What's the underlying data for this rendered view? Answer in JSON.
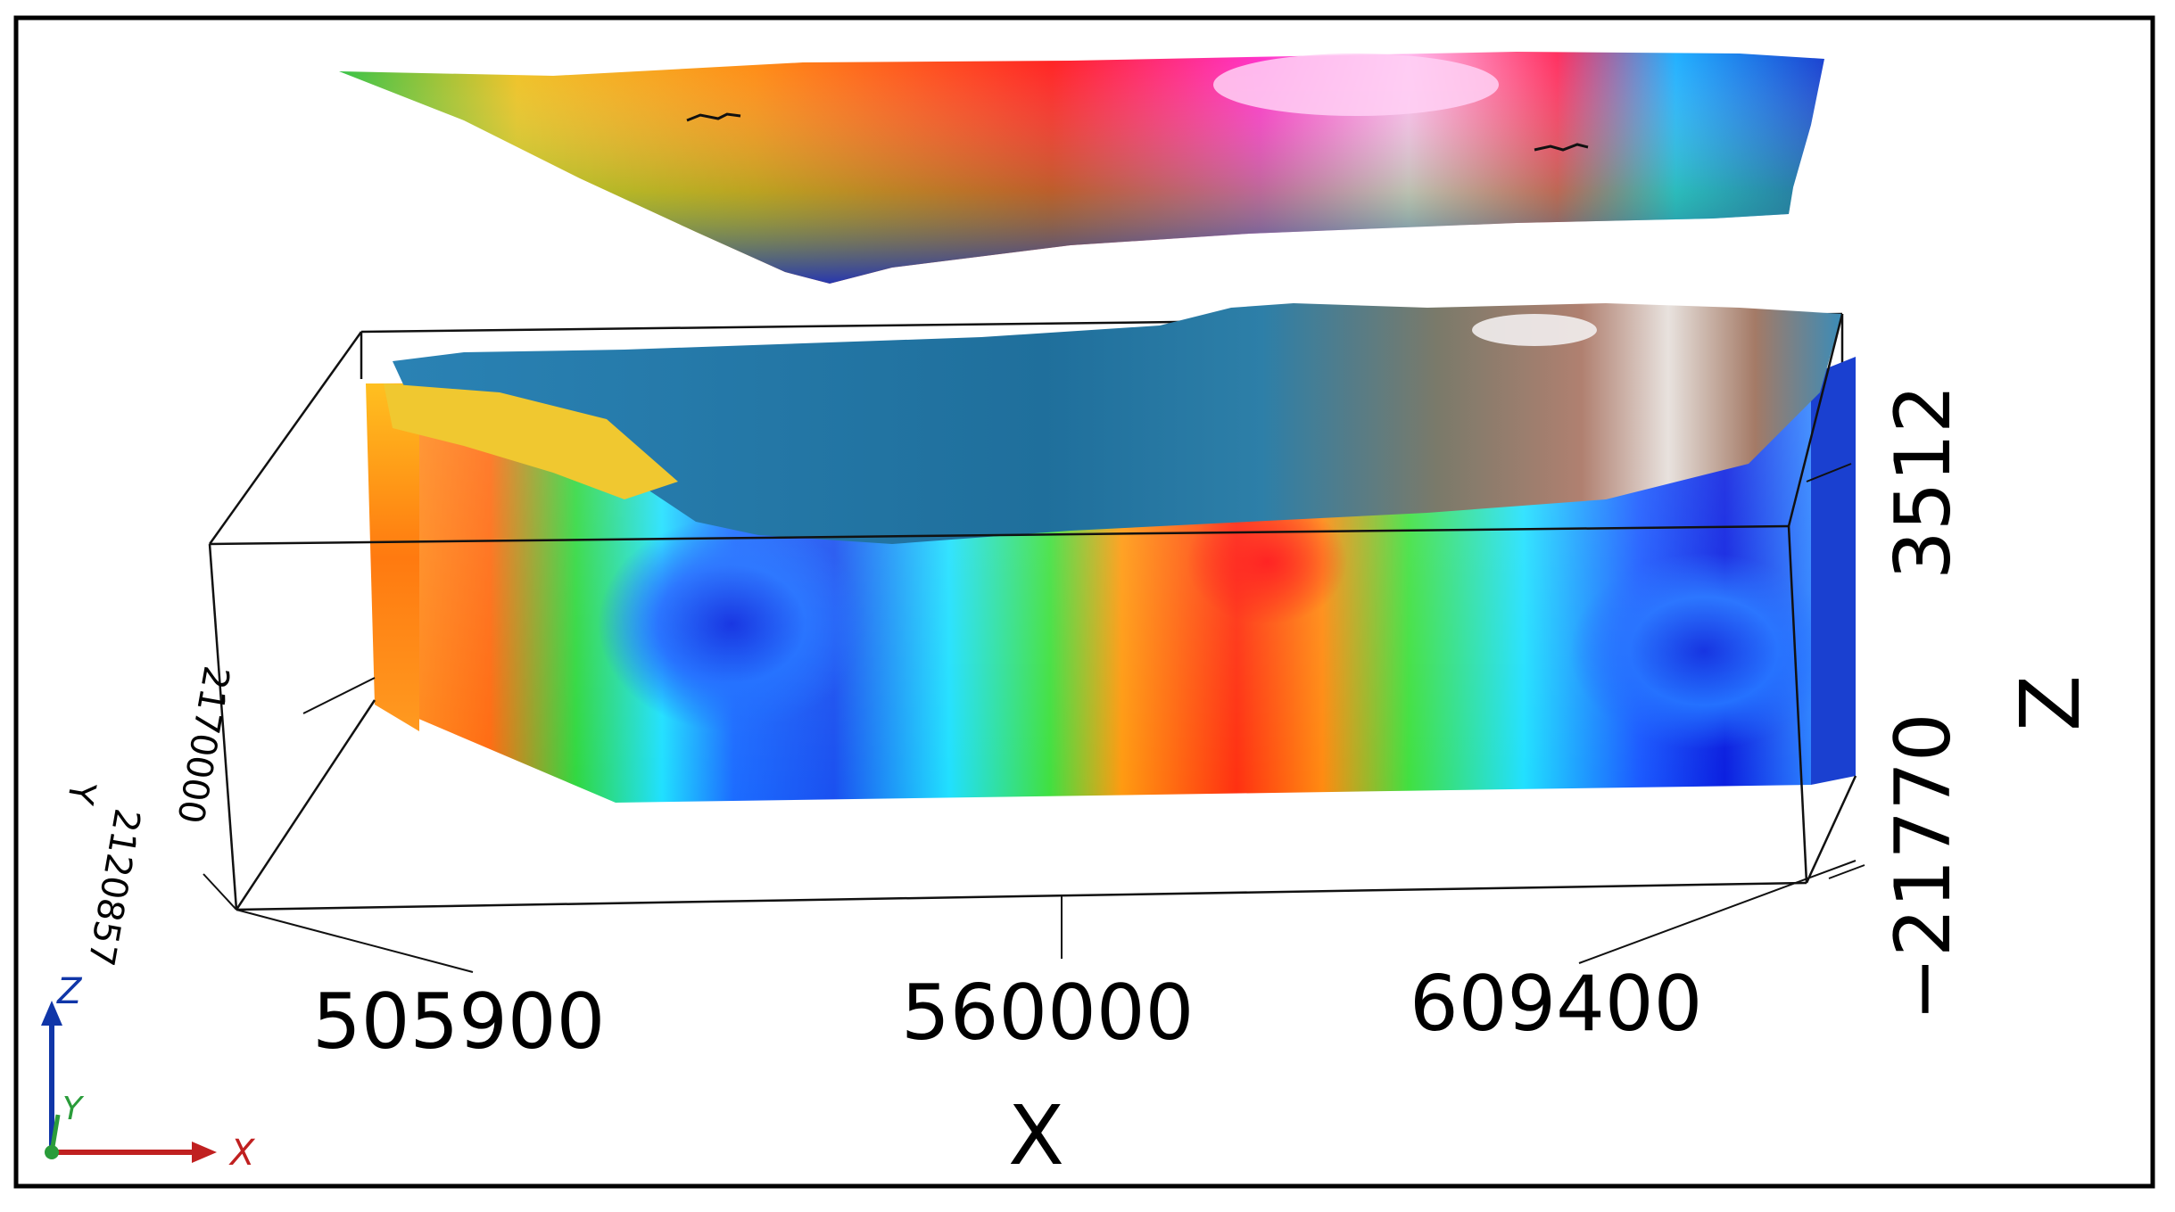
{
  "figure": {
    "x_axis": {
      "label": "X",
      "ticks": [
        "505900",
        "560000",
        "609400"
      ]
    },
    "y_axis": {
      "label": "Y",
      "ticks": [
        "2170000",
        "2120857"
      ]
    },
    "z_axis": {
      "label": "Z",
      "ticks": [
        "3512",
        "−21770"
      ]
    },
    "triad": {
      "z_label": "Z",
      "y_label": "Y",
      "x_label": "X"
    },
    "colors": {
      "scale": [
        "#0026d9",
        "#1a73ff",
        "#00d6ff",
        "#2ee64a",
        "#ffd400",
        "#ff7a00",
        "#ff1a1a",
        "#ff2ad4",
        "#ffc8f0"
      ],
      "topography": [
        "#1f6f9c",
        "#2f8ab8",
        "#5a7f6a",
        "#a57a63",
        "#e6e0dc"
      ],
      "triad_z": "#1036a8",
      "triad_y": "#2a9c3a",
      "triad_x": "#c02020"
    }
  }
}
